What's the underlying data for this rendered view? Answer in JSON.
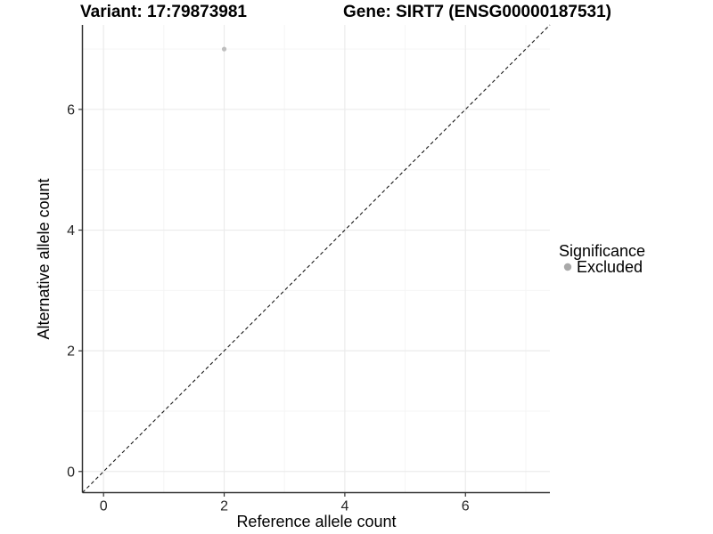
{
  "chart_data": {
    "type": "scatter",
    "titles": {
      "left": "Variant: 17:79873981",
      "right": "Gene: SIRT7 (ENSG00000187531)"
    },
    "xlabel": "Reference allele count",
    "ylabel": "Alternative allele count",
    "xlim": [
      -0.35,
      7.4
    ],
    "ylim": [
      -0.35,
      7.4
    ],
    "x_major_ticks": [
      0,
      2,
      4,
      6
    ],
    "y_major_ticks": [
      0,
      2,
      4,
      6
    ],
    "x_minor_gridlines": [
      1,
      3,
      5,
      7
    ],
    "y_minor_gridlines": [
      1,
      3,
      5,
      7
    ],
    "grid": "major+minor",
    "identity_line": {
      "slope": 1,
      "intercept": 0,
      "style": "dashed",
      "color": "#1a1a1a"
    },
    "series": [
      {
        "name": "Excluded",
        "color": "#bebebe",
        "points": [
          {
            "x": 2,
            "y": 7
          }
        ]
      }
    ],
    "legend": {
      "title": "Significance",
      "position": "right",
      "items": [
        {
          "label": "Excluded",
          "color": "#a9a9a9",
          "marker": "circle"
        }
      ]
    }
  },
  "colors": {
    "background": "#ffffff",
    "grid_major": "#ebebeb",
    "grid_minor": "#f5f5f5",
    "axis_line": "#333333",
    "tick_mark": "#333333",
    "tick_label": "#262626"
  }
}
